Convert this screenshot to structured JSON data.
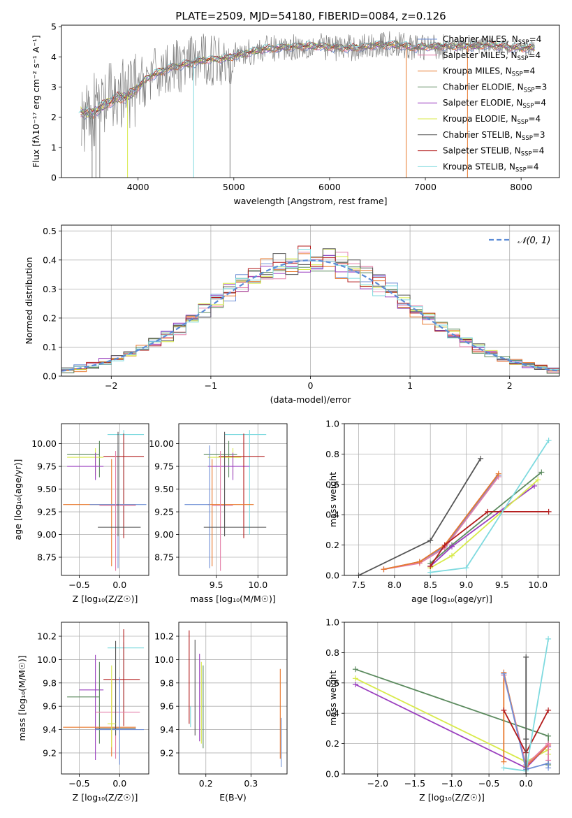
{
  "figure": {
    "title": "PLATE=2509, MJD=54180, FIBERID=0084, z=0.126"
  },
  "colors": {
    "Chabrier MILES": "#6f8fd6",
    "Salpeter MILES": "#e47ea8",
    "Kroupa MILES": "#e8782c",
    "Chabrier ELODIE": "#5b8a5e",
    "Salpeter ELODIE": "#9a3fbf",
    "Kroupa ELODIE": "#d8ea4a",
    "Chabrier STELIB": "#555555",
    "Salpeter STELIB": "#b31b1b",
    "Kroupa STELIB": "#7fdadf",
    "data": "#808080"
  },
  "chart_data": [
    {
      "type": "line",
      "id": "spectrum",
      "title": "PLATE=2509, MJD=54180, FIBERID=0084, z=0.126",
      "xlabel": "wavelength [Angstrom, rest frame]",
      "ylabel": "Flux [fλ10⁻¹⁷ erg cm⁻² s⁻¹ A⁻¹]",
      "xlim": [
        3200,
        8400
      ],
      "ylim": [
        0,
        5.05
      ],
      "xticks": [
        4000,
        5000,
        6000,
        7000,
        8000
      ],
      "yticks": [
        0,
        1,
        2,
        3,
        4,
        5
      ],
      "legend_position": "top-right",
      "legend": [
        {
          "model": "Chabrier MILES",
          "label": "Chabrier MILES, N",
          "sub": "SSP",
          "eq": "=4"
        },
        {
          "model": "Salpeter MILES",
          "label": "Salpeter MILES, N",
          "sub": "SSP",
          "eq": "=4"
        },
        {
          "model": "Kroupa MILES",
          "label": "Kroupa MILES, N",
          "sub": "SSP",
          "eq": "=4"
        },
        {
          "model": "Chabrier ELODIE",
          "label": "Chabrier ELODIE, N",
          "sub": "SSP",
          "eq": "=3"
        },
        {
          "model": "Salpeter ELODIE",
          "label": "Salpeter ELODIE, N",
          "sub": "SSP",
          "eq": "=4"
        },
        {
          "model": "Kroupa ELODIE",
          "label": "Kroupa ELODIE, N",
          "sub": "SSP",
          "eq": "=4"
        },
        {
          "model": "Chabrier STELIB",
          "label": "Chabrier STELIB, N",
          "sub": "SSP",
          "eq": "=3"
        },
        {
          "model": "Salpeter STELIB",
          "label": "Salpeter STELIB, N",
          "sub": "SSP",
          "eq": "=4"
        },
        {
          "model": "Kroupa STELIB",
          "label": "Kroupa STELIB, N",
          "sub": "SSP",
          "eq": "=4"
        }
      ],
      "continuum": {
        "x": [
          3400,
          3500,
          3600,
          3700,
          3800,
          3900,
          4000,
          4100,
          4300,
          4500,
          4700,
          4900,
          5100,
          5300,
          5500,
          5700,
          5900,
          6100,
          6300,
          6500,
          6700,
          6900,
          7100,
          7300,
          7500,
          7700,
          7900,
          8100
        ],
        "y": [
          2.2,
          2.1,
          2.3,
          2.5,
          2.65,
          2.7,
          3.0,
          3.3,
          3.6,
          3.75,
          3.9,
          3.95,
          4.1,
          4.25,
          4.3,
          4.35,
          4.35,
          4.3,
          4.3,
          4.4,
          4.4,
          4.3,
          4.35,
          4.35,
          4.35,
          4.4,
          4.3,
          4.3
        ]
      }
    },
    {
      "type": "histogram",
      "id": "residuals",
      "xlabel": "(data-model)/error",
      "ylabel": "Normed distribution",
      "xlim": [
        -2.5,
        2.5
      ],
      "ylim": [
        0,
        0.52
      ],
      "xticks": [
        -2,
        -1,
        0,
        1,
        2
      ],
      "yticks": [
        0.0,
        0.1,
        0.2,
        0.3,
        0.4,
        0.5
      ],
      "legend_position": "top-right",
      "gaussian_label": "𝒩(0, 1)",
      "gaussian_color": "#5b8bd6",
      "bin_width": 0.125
    },
    {
      "type": "scatter",
      "id": "age-vs-Z",
      "xlabel": "Z [log₁₀(Z/Z☉)]",
      "ylabel": "age  [log₁₀(age/yr)]",
      "xlim": [
        -0.72,
        0.36
      ],
      "ylim": [
        8.55,
        10.22
      ],
      "xticks": [
        -0.5,
        0.0
      ],
      "yticks": [
        8.75,
        9.0,
        9.25,
        9.5,
        9.75,
        10.0
      ],
      "errorbars": [
        {
          "model": "Kroupa STELIB",
          "x": 0.05,
          "xerr": [
            0.2,
            0.25
          ],
          "y": 10.1,
          "yerr": [
            1.1,
            0.05
          ]
        },
        {
          "model": "Chabrier ELODIE",
          "x": -0.25,
          "xerr": [
            0.4,
            0.0
          ],
          "y": 9.88,
          "yerr": [
            0.25,
            0.15
          ]
        },
        {
          "model": "Kroupa ELODIE",
          "x": -0.3,
          "xerr": [
            0.35,
            0.1
          ],
          "y": 9.85,
          "yerr": [
            0.2,
            0.1
          ]
        },
        {
          "model": "Salpeter ELODIE",
          "x": -0.3,
          "xerr": [
            0.35,
            0.1
          ],
          "y": 9.75,
          "yerr": [
            0.15,
            0.15
          ]
        },
        {
          "model": "Salpeter STELIB",
          "x": 0.05,
          "xerr": [
            0.25,
            0.25
          ],
          "y": 9.86,
          "yerr": [
            0.9,
            0.25
          ]
        },
        {
          "model": "Kroupa MILES",
          "x": -0.1,
          "xerr": [
            0.6,
            0.3
          ],
          "y": 9.33,
          "yerr": [
            0.68,
            0.5
          ]
        },
        {
          "model": "Chabrier MILES",
          "x": -0.02,
          "xerr": [
            0.35,
            0.35
          ],
          "y": 9.33,
          "yerr": [
            0.7,
            0.65
          ]
        },
        {
          "model": "Salpeter MILES",
          "x": -0.05,
          "xerr": [
            0.2,
            0.25
          ],
          "y": 9.32,
          "yerr": [
            0.72,
            0.6
          ]
        },
        {
          "model": "Chabrier STELIB",
          "x": -0.02,
          "xerr": [
            0.25,
            0.28
          ],
          "y": 9.08,
          "yerr": [
            0.1,
            1.05
          ]
        }
      ]
    },
    {
      "type": "scatter",
      "id": "age-vs-mass",
      "xlabel": "mass [log₁₀(M/M☉)]",
      "xlim": [
        9.05,
        10.35
      ],
      "ylim": [
        8.55,
        10.22
      ],
      "xticks": [
        9.5,
        10.0
      ],
      "yticks": [
        8.75,
        9.0,
        9.25,
        9.5,
        9.75,
        10.0
      ],
      "errorbars": [
        {
          "model": "Kroupa STELIB",
          "x": 9.9,
          "xerr": [
            0.3,
            0.2
          ],
          "y": 10.1,
          "yerr": [
            1.1,
            0.05
          ]
        },
        {
          "model": "Chabrier ELODIE",
          "x": 9.65,
          "xerr": [
            0.3,
            0.1
          ],
          "y": 9.88,
          "yerr": [
            0.25,
            0.15
          ]
        },
        {
          "model": "Kroupa ELODIE",
          "x": 9.7,
          "xerr": [
            0.3,
            0.1
          ],
          "y": 9.85,
          "yerr": [
            0.2,
            0.1
          ]
        },
        {
          "model": "Salpeter ELODIE",
          "x": 9.7,
          "xerr": [
            0.3,
            0.2
          ],
          "y": 9.75,
          "yerr": [
            0.15,
            0.15
          ]
        },
        {
          "model": "Salpeter STELIB",
          "x": 9.83,
          "xerr": [
            0.3,
            0.25
          ],
          "y": 9.86,
          "yerr": [
            0.9,
            0.25
          ]
        },
        {
          "model": "Kroupa MILES",
          "x": 9.45,
          "xerr": [
            0.05,
            0.5
          ],
          "y": 9.33,
          "yerr": [
            0.68,
            0.5
          ]
        },
        {
          "model": "Chabrier MILES",
          "x": 9.42,
          "xerr": [
            0.3,
            0.0
          ],
          "y": 9.33,
          "yerr": [
            0.7,
            0.65
          ]
        },
        {
          "model": "Salpeter MILES",
          "x": 9.55,
          "xerr": [
            0.1,
            0.15
          ],
          "y": 9.32,
          "yerr": [
            0.72,
            0.6
          ]
        },
        {
          "model": "Chabrier STELIB",
          "x": 9.6,
          "xerr": [
            0.25,
            0.5
          ],
          "y": 9.08,
          "yerr": [
            0.1,
            1.05
          ]
        }
      ]
    },
    {
      "type": "line",
      "id": "mass-weight-vs-age",
      "xlabel": "age  [log₁₀(age/yr)]",
      "ylabel": "mass weight",
      "xlim": [
        7.3,
        10.3
      ],
      "ylim": [
        0,
        1.0
      ],
      "xticks": [
        7.5,
        8.0,
        8.5,
        9.0,
        9.5,
        10.0
      ],
      "yticks": [
        0.0,
        0.2,
        0.4,
        0.6,
        0.8,
        1.0
      ],
      "series": [
        {
          "model": "Chabrier STELIB",
          "x": [
            7.5,
            8.5,
            9.2
          ],
          "y": [
            0.0,
            0.23,
            0.77
          ]
        },
        {
          "model": "Chabrier MILES",
          "x": [
            7.85,
            8.35,
            8.7,
            9.45
          ],
          "y": [
            0.04,
            0.09,
            0.19,
            0.66
          ]
        },
        {
          "model": "Salpeter MILES",
          "x": [
            7.85,
            8.35,
            8.7,
            9.45
          ],
          "y": [
            0.04,
            0.08,
            0.18,
            0.65
          ]
        },
        {
          "model": "Kroupa MILES",
          "x": [
            7.85,
            8.35,
            8.7,
            9.45
          ],
          "y": [
            0.04,
            0.09,
            0.2,
            0.67
          ]
        },
        {
          "model": "Chabrier ELODIE",
          "x": [
            8.5,
            8.8,
            10.05
          ],
          "y": [
            0.08,
            0.2,
            0.68
          ]
        },
        {
          "model": "Salpeter ELODIE",
          "x": [
            8.5,
            8.8,
            9.95
          ],
          "y": [
            0.06,
            0.19,
            0.59
          ]
        },
        {
          "model": "Kroupa ELODIE",
          "x": [
            8.5,
            8.8,
            10.0
          ],
          "y": [
            0.05,
            0.13,
            0.63
          ]
        },
        {
          "model": "Salpeter STELIB",
          "x": [
            8.5,
            8.7,
            9.3,
            10.15
          ],
          "y": [
            0.06,
            0.2,
            0.42,
            0.42
          ]
        },
        {
          "model": "Kroupa STELIB",
          "x": [
            8.5,
            9.0,
            10.15
          ],
          "y": [
            0.02,
            0.05,
            0.89
          ]
        }
      ]
    },
    {
      "type": "scatter",
      "id": "mass-vs-Z",
      "xlabel": "Z [log₁₀(Z/Z☉)]",
      "ylabel": "mass [log₁₀(M/M☉)]",
      "xlim": [
        -0.72,
        0.36
      ],
      "ylim": [
        9.02,
        10.32
      ],
      "xticks": [
        -0.5,
        0.0
      ],
      "yticks": [
        9.2,
        9.4,
        9.6,
        9.8,
        10.0,
        10.2
      ],
      "errorbars": [
        {
          "model": "Kroupa STELIB",
          "x": 0.05,
          "xerr": [
            0.2,
            0.25
          ],
          "y": 10.1,
          "yerr": [
            0.55,
            0.05
          ]
        },
        {
          "model": "Salpeter ELODIE",
          "x": -0.3,
          "xerr": [
            0.2,
            0.1
          ],
          "y": 9.74,
          "yerr": [
            0.6,
            0.3
          ]
        },
        {
          "model": "Salpeter STELIB",
          "x": 0.05,
          "xerr": [
            0.25,
            0.2
          ],
          "y": 9.83,
          "yerr": [
            0.4,
            0.43
          ]
        },
        {
          "model": "Chabrier ELODIE",
          "x": -0.25,
          "xerr": [
            0.4,
            0.0
          ],
          "y": 9.68,
          "yerr": [
            0.4,
            0.3
          ]
        },
        {
          "model": "Salpeter MILES",
          "x": -0.05,
          "xerr": [
            0.25,
            0.3
          ],
          "y": 9.55,
          "yerr": [
            0.4,
            0.3
          ]
        },
        {
          "model": "Kroupa MILES",
          "x": -0.1,
          "xerr": [
            0.6,
            0.3
          ],
          "y": 9.42,
          "yerr": [
            0.25,
            0.4
          ]
        },
        {
          "model": "Chabrier STELIB",
          "x": -0.05,
          "xerr": [
            0.25,
            0.25
          ],
          "y": 9.41,
          "yerr": [
            0.06,
            0.75
          ]
        },
        {
          "model": "Chabrier MILES",
          "x": 0.0,
          "xerr": [
            0.3,
            0.3
          ],
          "y": 9.4,
          "yerr": [
            0.3,
            0.45
          ]
        },
        {
          "model": "Kroupa ELODIE",
          "x": -0.1,
          "xerr": [
            0.05,
            0.05
          ],
          "y": 9.45,
          "yerr": [
            0.2,
            0.5
          ]
        }
      ]
    },
    {
      "type": "scatter",
      "id": "mass-vs-EBV",
      "xlabel": "E(B-V)",
      "xlim": [
        0.14,
        0.38
      ],
      "ylim": [
        9.02,
        10.32
      ],
      "xticks": [
        0.2,
        0.3
      ],
      "yticks": [
        9.2,
        9.4,
        9.6,
        9.8,
        10.0,
        10.2
      ],
      "errorbars": [
        {
          "model": "Salpeter STELIB",
          "x": 0.163,
          "yrange": [
            9.45,
            10.25
          ]
        },
        {
          "model": "Kroupa STELIB",
          "x": 0.166,
          "yrange": [
            9.42,
            9.6
          ]
        },
        {
          "model": "Chabrier STELIB",
          "x": 0.176,
          "yrange": [
            9.35,
            10.17
          ]
        },
        {
          "model": "Salpeter ELODIE",
          "x": 0.186,
          "yrange": [
            9.3,
            10.05
          ]
        },
        {
          "model": "Kroupa ELODIE",
          "x": 0.19,
          "yrange": [
            9.28,
            9.98
          ]
        },
        {
          "model": "Chabrier ELODIE",
          "x": 0.194,
          "yrange": [
            9.24,
            9.95
          ]
        },
        {
          "model": "Kroupa MILES",
          "x": 0.365,
          "yrange": [
            9.15,
            9.92
          ]
        },
        {
          "model": "Chabrier MILES",
          "x": 0.367,
          "yrange": [
            9.08,
            9.5
          ]
        }
      ]
    },
    {
      "type": "line",
      "id": "mass-weight-vs-Z",
      "xlabel": "Z [log₁₀(Z/Z☉)]",
      "ylabel": "mass weight",
      "xlim": [
        -2.45,
        0.45
      ],
      "ylim": [
        0,
        1.0
      ],
      "xticks": [
        -2.0,
        -1.5,
        -1.0,
        -0.5,
        0.0
      ],
      "yticks": [
        0.0,
        0.2,
        0.4,
        0.6,
        0.8,
        1.0
      ],
      "series": [
        {
          "model": "Chabrier ELODIE",
          "x": [
            -2.3,
            0.3,
            0.3
          ],
          "y": [
            0.69,
            0.25,
            0.06
          ]
        },
        {
          "model": "Kroupa ELODIE",
          "x": [
            -2.3,
            0.0,
            0.3,
            0.3
          ],
          "y": [
            0.63,
            0.08,
            0.16,
            0.13
          ]
        },
        {
          "model": "Salpeter ELODIE",
          "x": [
            -2.3,
            0.0,
            0.3,
            0.3
          ],
          "y": [
            0.59,
            0.04,
            0.19,
            0.18
          ]
        },
        {
          "model": "Kroupa MILES",
          "x": [
            -0.3,
            -0.3,
            0.0,
            0.3
          ],
          "y": [
            0.08,
            0.67,
            0.05,
            0.19
          ]
        },
        {
          "model": "Salpeter MILES",
          "x": [
            -0.3,
            0.0,
            0.3,
            0.3
          ],
          "y": [
            0.65,
            0.06,
            0.2,
            0.09
          ]
        },
        {
          "model": "Chabrier MILES",
          "x": [
            -0.3,
            0.0,
            0.3,
            0.3
          ],
          "y": [
            0.66,
            0.03,
            0.07,
            0.04
          ]
        },
        {
          "model": "Salpeter STELIB",
          "x": [
            -0.3,
            0.0,
            0.3
          ],
          "y": [
            0.42,
            0.14,
            0.42
          ]
        },
        {
          "model": "Kroupa STELIB",
          "x": [
            -0.3,
            0.0,
            0.3
          ],
          "y": [
            0.04,
            0.02,
            0.89
          ]
        },
        {
          "model": "Chabrier STELIB",
          "x": [
            0.0,
            0.0,
            0.0
          ],
          "y": [
            0.77,
            0.0,
            0.23
          ]
        }
      ]
    }
  ]
}
